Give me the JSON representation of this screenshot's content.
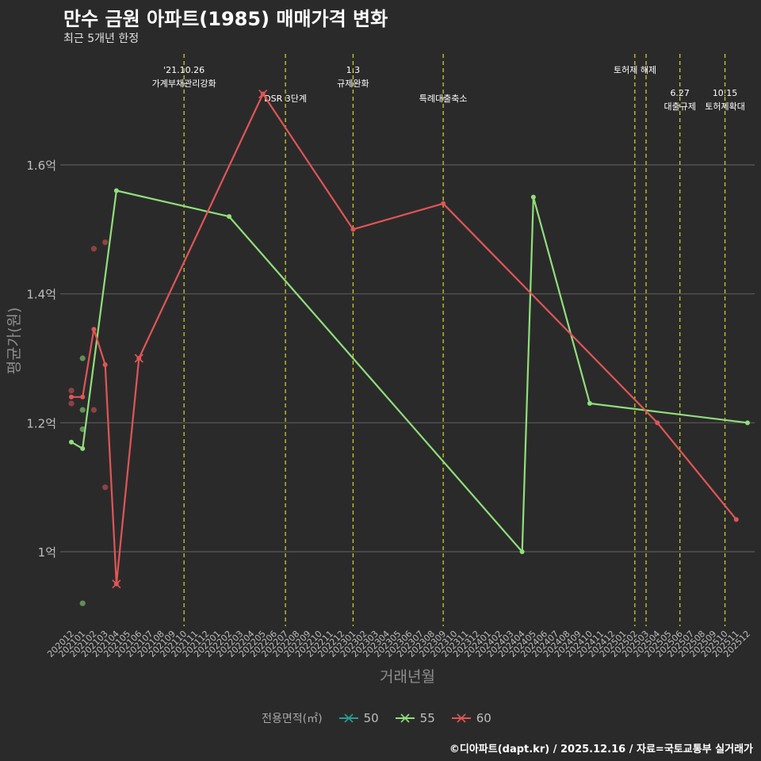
{
  "header": {
    "title": "만수 금원 아파트(1985) 매매가격 변화",
    "subtitle": "최근 5개년 한정"
  },
  "caption": "©디아파트(dapt.kr) / 2025.12.16 / 자료=국토교통부 실거래가",
  "colors": {
    "background": "#2b2a2b",
    "grid": "#5a5a5a",
    "vline": "#c8cc2a",
    "s50": "#2a9d8f",
    "s55": "#8fe07a",
    "s60": "#e05656"
  },
  "chart_data": {
    "type": "line",
    "xlabel": "거래년월",
    "ylabel": "평균가(원)",
    "ylim": [
      0.88,
      1.77
    ],
    "y_ticks": [
      {
        "value": 1.0,
        "label": "1억"
      },
      {
        "value": 1.2,
        "label": "1.2억"
      },
      {
        "value": 1.4,
        "label": "1.4억"
      },
      {
        "value": 1.6,
        "label": "1.6억"
      }
    ],
    "x_categories": [
      "202012",
      "202101",
      "202102",
      "202103",
      "202104",
      "202105",
      "202106",
      "202107",
      "202108",
      "202109",
      "202110",
      "202111",
      "202112",
      "202201",
      "202202",
      "202203",
      "202204",
      "202205",
      "202206",
      "202207",
      "202208",
      "202209",
      "202210",
      "202211",
      "202212",
      "202301",
      "202302",
      "202303",
      "202304",
      "202305",
      "202306",
      "202307",
      "202308",
      "202309",
      "202310",
      "202311",
      "202312",
      "202401",
      "202402",
      "202403",
      "202404",
      "202405",
      "202406",
      "202407",
      "202408",
      "202409",
      "202410",
      "202411",
      "202412",
      "202501",
      "202502",
      "202503",
      "202504",
      "202505",
      "202506",
      "202507",
      "202508",
      "202509",
      "202510",
      "202511",
      "202512"
    ],
    "legend_title": "전용면적(㎡)",
    "series": [
      {
        "name": "50",
        "color": "#2a9d8f",
        "points": [],
        "scatter": []
      },
      {
        "name": "55",
        "color": "#8fe07a",
        "points": [
          [
            "202012",
            1.17
          ],
          [
            "202101",
            1.16
          ],
          [
            "202104",
            1.56
          ],
          [
            "202202",
            1.52
          ],
          [
            "202404",
            1.0
          ],
          [
            "202405",
            1.55
          ],
          [
            "202410",
            1.23
          ],
          [
            "202512",
            1.2
          ]
        ],
        "scatter": [
          [
            "202101",
            1.3
          ],
          [
            "202101",
            1.22
          ],
          [
            "202101",
            1.19
          ],
          [
            "202101",
            0.92
          ]
        ]
      },
      {
        "name": "60",
        "color": "#e05656",
        "points": [
          [
            "202012",
            1.24
          ],
          [
            "202101",
            1.24
          ],
          [
            "202102",
            1.345
          ],
          [
            "202103",
            1.29
          ],
          [
            "202104",
            0.95
          ],
          [
            "202106",
            1.3
          ],
          [
            "202205",
            1.71
          ],
          [
            "202301",
            1.5
          ],
          [
            "202309",
            1.54
          ],
          [
            "202504",
            1.2
          ],
          [
            "202511",
            1.05
          ]
        ],
        "scatter": [
          [
            "202012",
            1.25
          ],
          [
            "202012",
            1.23
          ],
          [
            "202102",
            1.47
          ],
          [
            "202102",
            1.22
          ],
          [
            "202103",
            1.48
          ],
          [
            "202103",
            1.1
          ]
        ],
        "cross_marks": [
          [
            "202104",
            0.95
          ],
          [
            "202106",
            1.3
          ],
          [
            "202205",
            1.71
          ]
        ]
      }
    ],
    "events": [
      {
        "month": "202110",
        "label": "'21.10.26\n가계부채관리강화",
        "row": 0
      },
      {
        "month": "202207",
        "label": "DSR 3단계",
        "row": 1
      },
      {
        "month": "202301",
        "label": "1.3\n규제완화",
        "row": 0
      },
      {
        "month": "202309",
        "label": "특례대출축소",
        "row": 1
      },
      {
        "month": "202502",
        "label": "",
        "row": 0
      },
      {
        "month": "202503",
        "label": "토허제 해제",
        "row": 0
      },
      {
        "month": "202506",
        "label": "6.27\n대출규제",
        "row": 2
      },
      {
        "month": "202510",
        "label": "10.15\n토허제확대",
        "row": 2
      }
    ]
  }
}
